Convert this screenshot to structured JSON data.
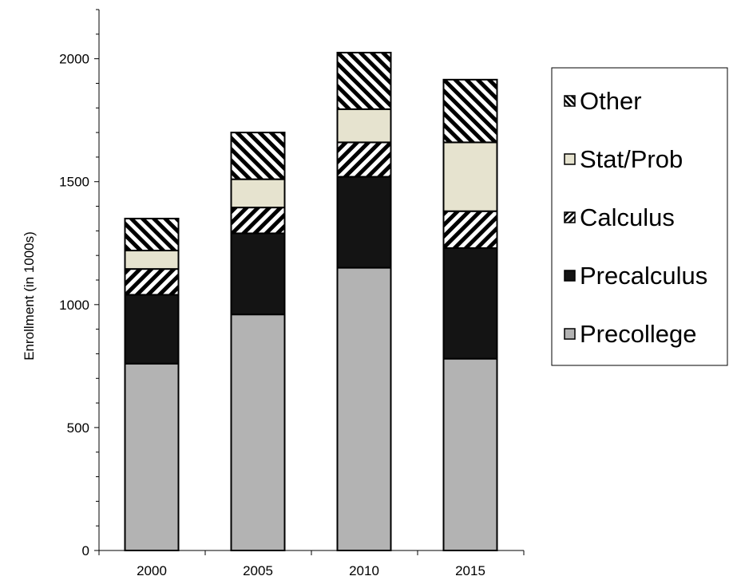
{
  "chart_data": {
    "type": "bar",
    "stacked": true,
    "title": "",
    "xlabel": "",
    "ylabel": "Enrollment (in 1000s)",
    "categories": [
      "2000",
      "2005",
      "2010",
      "2015"
    ],
    "ylim": [
      0,
      2200
    ],
    "yticks": [
      0,
      500,
      1000,
      1500,
      2000
    ],
    "grid": false,
    "legend_position": "right",
    "series": [
      {
        "name": "Precollege",
        "values": [
          760,
          960,
          1150,
          780
        ],
        "fill": "#b3b3b3",
        "pattern": "solid"
      },
      {
        "name": "Precalculus",
        "values": [
          280,
          330,
          370,
          450
        ],
        "fill": "#141414",
        "pattern": "solid"
      },
      {
        "name": "Calculus",
        "values": [
          105,
          105,
          140,
          150
        ],
        "fill": "#ffffff",
        "pattern": "diagonal-forward"
      },
      {
        "name": "Stat/Prob",
        "values": [
          75,
          115,
          135,
          280
        ],
        "fill": "#e6e3cf",
        "pattern": "solid"
      },
      {
        "name": "Other",
        "values": [
          130,
          190,
          230,
          255
        ],
        "fill": "#ffffff",
        "pattern": "diagonal-backward"
      }
    ]
  }
}
